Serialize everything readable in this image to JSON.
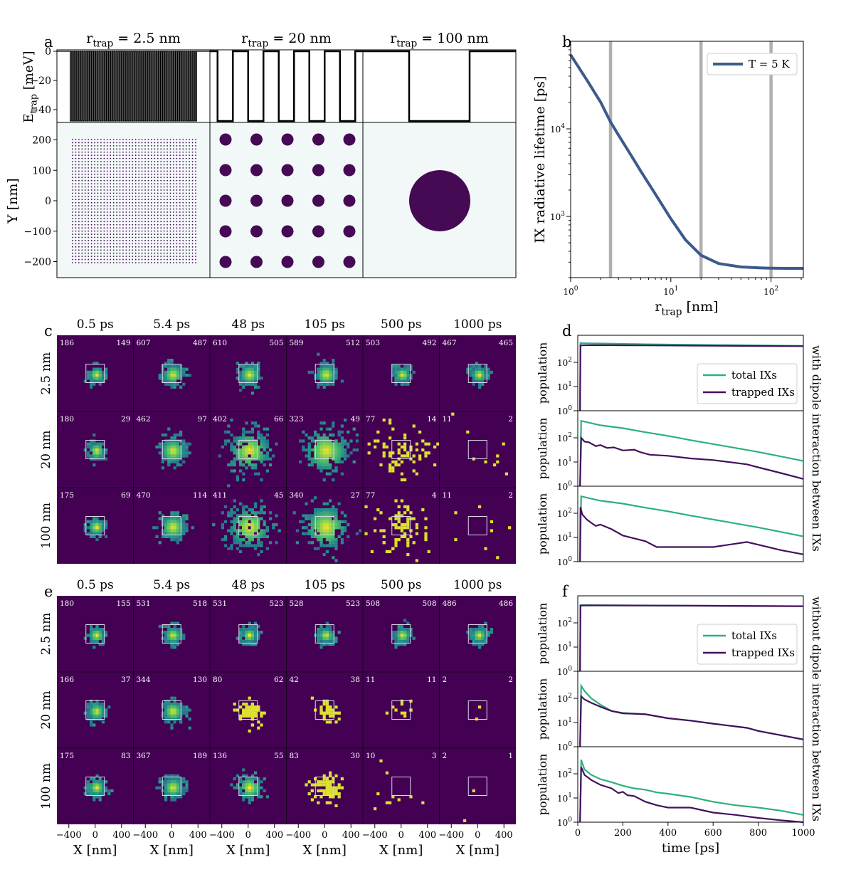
{
  "panel_a": {
    "letter": "a",
    "column_titles": [
      "r_trap = 2.5 nm",
      "r_trap = 20 nm",
      "r_trap = 100 nm"
    ],
    "top_ylabel": "E_trap [meV]",
    "top_yticks": [
      "0",
      "−20",
      "−40"
    ],
    "bottom_ylabel": "Y [nm]",
    "bottom_yticks": [
      "200",
      "100",
      "0",
      "−100",
      "−200"
    ]
  },
  "panel_b": {
    "letter": "b",
    "ylabel": "IX radiative lifetime [ps]",
    "xlabel": "r_trap [nm]"
  },
  "panel_c": {
    "letter": "c",
    "times": [
      "0.5 ps",
      "5.4 ps",
      "48 ps",
      "105 ps",
      "500 ps",
      "1000 ps"
    ],
    "rows": [
      "2.5 nm",
      "20 nm",
      "100 nm"
    ],
    "counts": [
      [
        [
          "186",
          "149"
        ],
        [
          "607",
          "487"
        ],
        [
          "610",
          "505"
        ],
        [
          "589",
          "512"
        ],
        [
          "503",
          "492"
        ],
        [
          "467",
          "465"
        ]
      ],
      [
        [
          "180",
          "29"
        ],
        [
          "462",
          "97"
        ],
        [
          "402",
          "66"
        ],
        [
          "323",
          "49"
        ],
        [
          "77",
          "14"
        ],
        [
          "11",
          "2"
        ]
      ],
      [
        [
          "175",
          "69"
        ],
        [
          "470",
          "114"
        ],
        [
          "411",
          "45"
        ],
        [
          "340",
          "27"
        ],
        [
          "77",
          "4"
        ],
        [
          "11",
          "2"
        ]
      ]
    ]
  },
  "panel_d": {
    "letter": "d",
    "ylabel": "population",
    "side_label": "with dipole interaction between IXs",
    "legend": [
      "total IXs",
      "trapped IXs"
    ]
  },
  "panel_e": {
    "letter": "e",
    "times": [
      "0.5 ps",
      "5.4 ps",
      "48 ps",
      "105 ps",
      "500 ps",
      "1000 ps"
    ],
    "rows": [
      "2.5 nm",
      "20 nm",
      "100 nm"
    ],
    "counts": [
      [
        [
          "180",
          "155"
        ],
        [
          "531",
          "518"
        ],
        [
          "531",
          "523"
        ],
        [
          "528",
          "523"
        ],
        [
          "508",
          "508"
        ],
        [
          "486",
          "486"
        ]
      ],
      [
        [
          "166",
          "37"
        ],
        [
          "344",
          "130"
        ],
        [
          "80",
          "62"
        ],
        [
          "42",
          "38"
        ],
        [
          "11",
          "11"
        ],
        [
          "2",
          "2"
        ]
      ],
      [
        [
          "175",
          "83"
        ],
        [
          "367",
          "189"
        ],
        [
          "136",
          "55"
        ],
        [
          "83",
          "30"
        ],
        [
          "10",
          "3"
        ],
        [
          "2",
          "1"
        ]
      ]
    ],
    "xlabel": "X [nm]",
    "xticks": [
      "−400",
      "0",
      "400"
    ]
  },
  "panel_f": {
    "letter": "f",
    "ylabel": "population",
    "side_label": "without dipole interaction between IXs",
    "legend": [
      "total IXs",
      "trapped IXs"
    ],
    "xlabel": "time [ps]",
    "xticks": [
      "0",
      "200",
      "400",
      "600",
      "800",
      "1000"
    ]
  },
  "colors": {
    "total": "#2cb07f",
    "trapped": "#44105e",
    "lifetime": "#3d5a8c",
    "vline": "#b0b0b0",
    "heat_bg": "#440154",
    "trap_fill": "#450a53",
    "trap_bg": "#f2f8f8"
  },
  "chart_data": [
    {
      "type": "line",
      "panel": "a-top",
      "title": "trap energy profile",
      "ylabel": "E_trap [meV]",
      "ylim": [
        -58,
        3
      ],
      "series": [
        {
          "name": "r_trap = 2.5 nm",
          "well_depth_meV": -50,
          "n_wells": 60
        },
        {
          "name": "r_trap = 20 nm",
          "well_depth_meV": -50,
          "n_wells": 5
        },
        {
          "name": "r_trap = 100 nm",
          "well_depth_meV": -50,
          "n_wells": 1
        }
      ]
    },
    {
      "type": "scatter",
      "panel": "a-bottom",
      "ylabel": "Y [nm]",
      "ylim": [
        -260,
        260
      ],
      "series": [
        {
          "name": "r_trap = 2.5 nm",
          "rows": 40,
          "cols": 40,
          "span_nm": [
            -200,
            200
          ]
        },
        {
          "name": "r_trap = 20 nm",
          "rows": 5,
          "cols": 5,
          "span_nm": [
            -200,
            200
          ]
        },
        {
          "name": "r_trap = 100 nm",
          "center_nm": [
            0,
            0
          ],
          "radius_nm": 100
        }
      ]
    },
    {
      "type": "line",
      "panel": "b",
      "xscale": "log",
      "yscale": "log",
      "xlabel": "r_trap [nm]",
      "ylabel": "IX radiative lifetime [ps]",
      "xlim": [
        1,
        210
      ],
      "ylim": [
        200,
        100000
      ],
      "xticks": [
        1,
        10,
        100
      ],
      "yticks": [
        1000,
        10000
      ],
      "series": [
        {
          "name": "T = 5 K",
          "x": [
            1,
            1.5,
            2,
            2.5,
            3,
            4,
            5,
            7,
            10,
            14,
            20,
            30,
            50,
            80,
            100,
            150,
            210
          ],
          "y": [
            70000,
            34000,
            20000,
            12000,
            8500,
            5000,
            3300,
            1800,
            940,
            540,
            360,
            290,
            265,
            258,
            256,
            255,
            255
          ]
        }
      ],
      "vlines": [
        2.5,
        20,
        100
      ],
      "legend": "top-right"
    },
    {
      "type": "line",
      "panel": "d",
      "yscale": "log",
      "ylim": [
        1,
        1000
      ],
      "xlim": [
        0,
        1000
      ],
      "yticks": [
        1,
        10,
        100
      ],
      "subplots": [
        {
          "row": "2.5 nm",
          "series": [
            {
              "name": "total IXs",
              "x": [
                10,
                12,
                20,
                50,
                100,
                300,
                500,
                800,
                1000
              ],
              "y": [
                1,
                630,
                620,
                610,
                600,
                560,
                530,
                500,
                480
              ]
            },
            {
              "name": "trapped IXs",
              "x": [
                10,
                12,
                20,
                50,
                100,
                300,
                500,
                800,
                1000
              ],
              "y": [
                1,
                500,
                505,
                510,
                510,
                500,
                490,
                475,
                465
              ]
            }
          ]
        },
        {
          "row": "20 nm",
          "series": [
            {
              "name": "total IXs",
              "x": [
                10,
                15,
                50,
                100,
                200,
                300,
                400,
                500,
                600,
                700,
                800,
                900,
                1000
              ],
              "y": [
                1,
                500,
                420,
                330,
                250,
                170,
                120,
                80,
                55,
                38,
                26,
                17,
                11
              ]
            },
            {
              "name": "trapped IXs",
              "x": [
                10,
                15,
                30,
                50,
                80,
                100,
                130,
                160,
                200,
                250,
                280,
                320,
                400,
                500,
                600,
                750,
                800,
                900,
                1000
              ],
              "y": [
                1,
                100,
                70,
                65,
                45,
                50,
                38,
                40,
                30,
                32,
                25,
                20,
                18,
                14,
                12,
                8,
                6,
                3.5,
                2
              ]
            }
          ]
        },
        {
          "row": "100 nm",
          "series": [
            {
              "name": "total IXs",
              "x": [
                10,
                15,
                50,
                100,
                200,
                300,
                400,
                500,
                600,
                700,
                800,
                900,
                1000
              ],
              "y": [
                1,
                500,
                420,
                330,
                250,
                170,
                120,
                80,
                55,
                38,
                26,
                17,
                11
              ]
            },
            {
              "name": "trapped IXs",
              "x": [
                10,
                12,
                20,
                40,
                60,
                80,
                100,
                150,
                200,
                300,
                350,
                400,
                500,
                600,
                750,
                800,
                900,
                1000
              ],
              "y": [
                1,
                180,
                90,
                55,
                40,
                30,
                34,
                22,
                12,
                7,
                4,
                4,
                4,
                4,
                6.5,
                5,
                3,
                2
              ]
            }
          ]
        }
      ],
      "legend": "lower-right"
    },
    {
      "type": "line",
      "panel": "f",
      "yscale": "log",
      "ylim": [
        1,
        1000
      ],
      "xlim": [
        0,
        1000
      ],
      "xlabel": "time [ps]",
      "xticks": [
        0,
        200,
        400,
        600,
        800,
        1000
      ],
      "yticks": [
        1,
        10,
        100
      ],
      "subplots": [
        {
          "row": "2.5 nm",
          "series": [
            {
              "name": "total IXs",
              "x": [
                10,
                12,
                50,
                100,
                300,
                500,
                800,
                1000
              ],
              "y": [
                1,
                540,
                540,
                535,
                525,
                515,
                500,
                490
              ]
            },
            {
              "name": "trapped IXs",
              "x": [
                10,
                12,
                50,
                100,
                300,
                500,
                800,
                1000
              ],
              "y": [
                1,
                520,
                525,
                525,
                520,
                510,
                495,
                486
              ]
            }
          ]
        },
        {
          "row": "20 nm",
          "series": [
            {
              "name": "total IXs",
              "x": [
                10,
                15,
                30,
                60,
                100,
                150,
                200,
                300,
                400,
                500,
                600,
                750,
                800,
                900,
                1000
              ],
              "y": [
                1,
                330,
                200,
                100,
                55,
                30,
                25,
                22,
                15,
                12,
                9,
                6,
                4.5,
                3,
                2
              ]
            },
            {
              "name": "trapped IXs",
              "x": [
                10,
                15,
                30,
                60,
                100,
                150,
                200,
                300,
                400,
                500,
                600,
                750,
                800,
                900,
                1000
              ],
              "y": [
                1,
                120,
                90,
                65,
                45,
                30,
                24,
                22,
                15,
                12,
                9,
                6,
                4.5,
                3,
                2
              ]
            }
          ]
        },
        {
          "row": "100 nm",
          "series": [
            {
              "name": "total IXs",
              "x": [
                10,
                15,
                30,
                60,
                100,
                150,
                200,
                250,
                300,
                350,
                400,
                500,
                600,
                700,
                800,
                900,
                1000
              ],
              "y": [
                1,
                380,
                150,
                90,
                60,
                45,
                32,
                25,
                22,
                17,
                15,
                11,
                7,
                5,
                4,
                3,
                2
              ]
            },
            {
              "name": "trapped IXs",
              "x": [
                10,
                15,
                30,
                60,
                100,
                150,
                180,
                200,
                220,
                250,
                300,
                350,
                400,
                500,
                600,
                700,
                800,
                900,
                1000
              ],
              "y": [
                1,
                190,
                90,
                55,
                35,
                25,
                16,
                18,
                13,
                12,
                7,
                5,
                4,
                4,
                2.5,
                2,
                1.5,
                1.2,
                1
              ]
            }
          ]
        }
      ],
      "legend": "lower-right"
    }
  ]
}
